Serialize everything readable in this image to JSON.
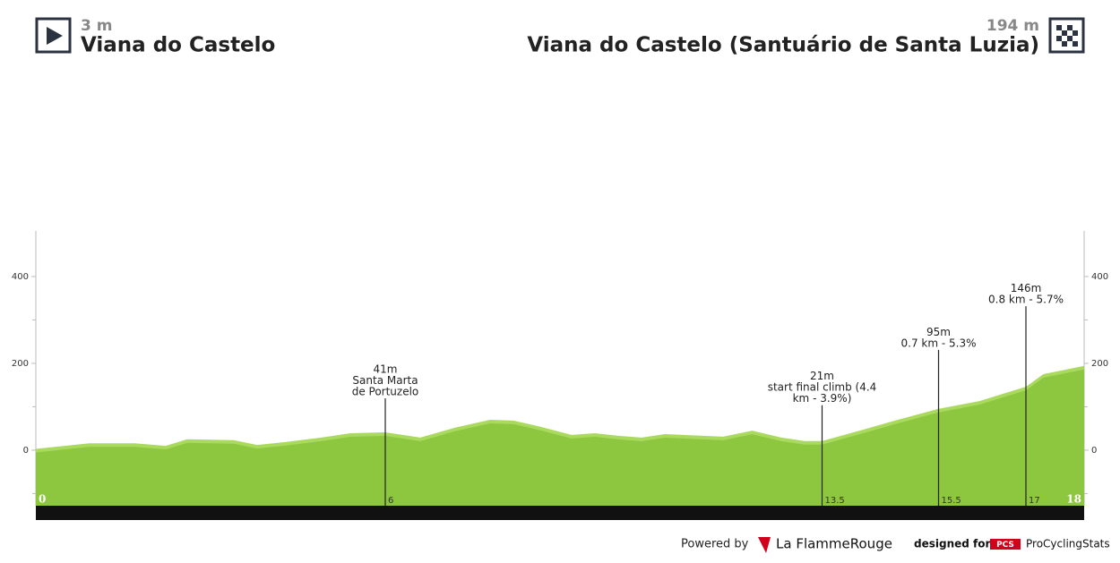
{
  "header": {
    "start": {
      "elevation": "3 m",
      "name": "Viana do Castelo"
    },
    "finish": {
      "elevation": "194 m",
      "name": "Viana do Castelo (Santuário de Santa Luzia)"
    }
  },
  "chart_data": {
    "type": "area",
    "x": [
      0,
      0.92,
      1.7,
      2.23,
      2.6,
      3.4,
      3.8,
      4.3,
      4.9,
      5.4,
      6,
      6.3,
      6.6,
      7.2,
      7.8,
      8.2,
      8.6,
      9.2,
      9.6,
      10,
      10.4,
      10.8,
      11.8,
      12.3,
      12.8,
      13.2,
      13.5,
      14.2,
      14.8,
      15.5,
      16.2,
      17,
      17.3,
      18
    ],
    "values": [
      3,
      16,
      16,
      10,
      25,
      23,
      12,
      19,
      29,
      39,
      41,
      35,
      29,
      52,
      70,
      68,
      56,
      35,
      39,
      33,
      29,
      37,
      31,
      45,
      29,
      21,
      21,
      47,
      70,
      95,
      113,
      146,
      175,
      194
    ],
    "color": "#8dc63f",
    "edge_color": "#a9da5e",
    "xlim": [
      0,
      18
    ],
    "ylim": [
      -128,
      505
    ],
    "xticks": [
      0,
      18
    ],
    "yticks": [
      0,
      200,
      400
    ],
    "minor_yticks": [
      -100,
      100,
      300
    ],
    "markers": [
      {
        "km": 6,
        "elevation": 41,
        "elevation_label": "41m",
        "lines": [
          "Santa Marta",
          "de Portuzelo"
        ]
      },
      {
        "km": 13.5,
        "elevation": 21,
        "elevation_label": "21m",
        "lines": [
          "start final climb (4.4",
          "km - 3.9%)"
        ]
      },
      {
        "km": 15.5,
        "elevation": 95,
        "elevation_label": "95m",
        "lines": [
          "0.7 km - 5.3%"
        ]
      },
      {
        "km": 17,
        "elevation": 146,
        "elevation_label": "146m",
        "lines": [
          "0.8 km - 5.7%"
        ]
      }
    ]
  },
  "footer": {
    "powered_by": "Powered by",
    "brand": "La FlammeRouge",
    "designed_for": "designed for",
    "pcs": "PCS",
    "site": "ProCyclingStats"
  }
}
